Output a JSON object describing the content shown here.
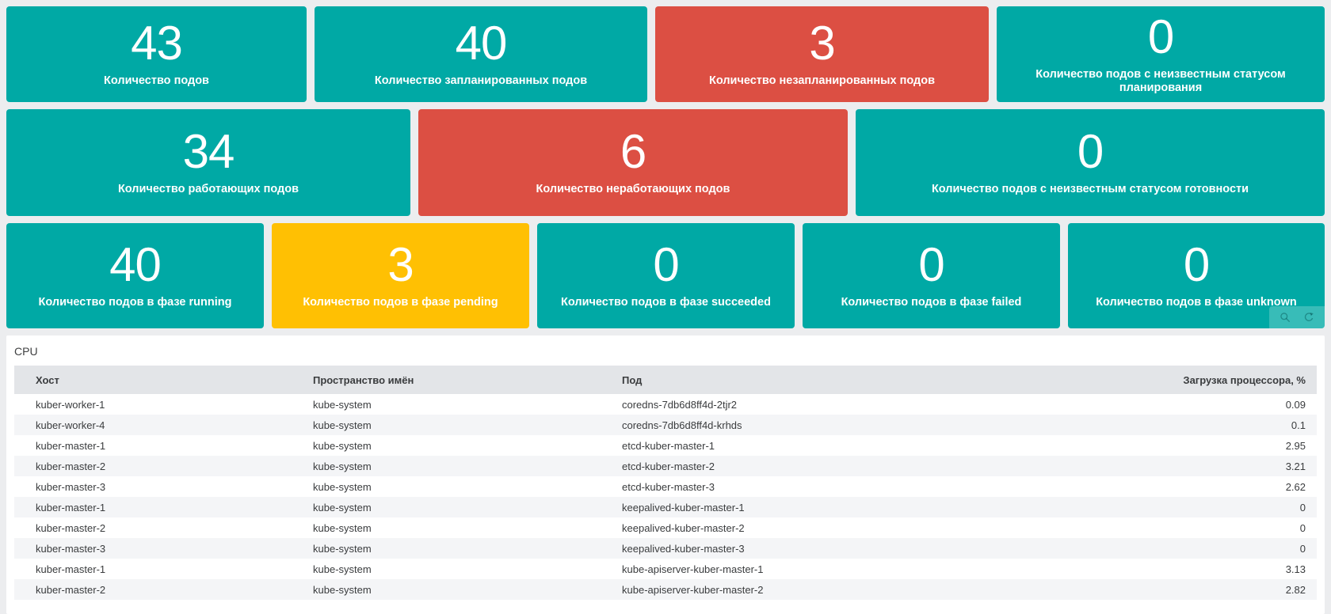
{
  "colors": {
    "teal": "#00a9a5",
    "red": "#dc4f43",
    "yellow": "#ffc003",
    "page_background": "#ecedef",
    "table_header_background": "#e3e5e8",
    "table_stripe_background": "#f4f5f7",
    "tile_text": "#ffffff",
    "table_text": "#3a3c3e"
  },
  "stat_rows": [
    {
      "tiles": [
        {
          "value": "43",
          "label": "Количество подов",
          "color": "teal"
        },
        {
          "value": "40",
          "label": "Количество запланированных подов",
          "color": "teal"
        },
        {
          "value": "3",
          "label": "Количество незапланированных подов",
          "color": "red"
        },
        {
          "value": "0",
          "label": "Количество подов с неизвестным статусом планирования",
          "color": "teal"
        }
      ]
    },
    {
      "tiles": [
        {
          "value": "34",
          "label": "Количество работающих подов",
          "color": "teal"
        },
        {
          "value": "6",
          "label": "Количество неработающих подов",
          "color": "red"
        },
        {
          "value": "0",
          "label": "Количество подов с неизвестным статусом готовности",
          "color": "teal"
        }
      ]
    },
    {
      "tiles": [
        {
          "value": "40",
          "label": "Количество подов в фазе running",
          "color": "teal"
        },
        {
          "value": "3",
          "label": "Количество подов в фазе pending",
          "color": "yellow"
        },
        {
          "value": "0",
          "label": "Количество подов в фазе succeeded",
          "color": "teal"
        },
        {
          "value": "0",
          "label": "Количество подов в фазе failed",
          "color": "teal"
        },
        {
          "value": "0",
          "label": "Количество подов в фазе unknown",
          "color": "teal"
        }
      ]
    }
  ],
  "widget_controls": {
    "icons": [
      {
        "name": "magnifier-icon"
      },
      {
        "name": "refresh-icon"
      }
    ]
  },
  "cpu_table": {
    "title": "CPU",
    "columns": [
      "Хост",
      "Пространство имён",
      "Под",
      "Загрузка процессора, %"
    ],
    "rows": [
      {
        "host": "kuber-worker-1",
        "namespace": "kube-system",
        "pod": "coredns-7db6d8ff4d-2tjr2",
        "cpu": "0.09"
      },
      {
        "host": "kuber-worker-4",
        "namespace": "kube-system",
        "pod": "coredns-7db6d8ff4d-krhds",
        "cpu": "0.1"
      },
      {
        "host": "kuber-master-1",
        "namespace": "kube-system",
        "pod": "etcd-kuber-master-1",
        "cpu": "2.95"
      },
      {
        "host": "kuber-master-2",
        "namespace": "kube-system",
        "pod": "etcd-kuber-master-2",
        "cpu": "3.21"
      },
      {
        "host": "kuber-master-3",
        "namespace": "kube-system",
        "pod": "etcd-kuber-master-3",
        "cpu": "2.62"
      },
      {
        "host": "kuber-master-1",
        "namespace": "kube-system",
        "pod": "keepalived-kuber-master-1",
        "cpu": "0"
      },
      {
        "host": "kuber-master-2",
        "namespace": "kube-system",
        "pod": "keepalived-kuber-master-2",
        "cpu": "0"
      },
      {
        "host": "kuber-master-3",
        "namespace": "kube-system",
        "pod": "keepalived-kuber-master-3",
        "cpu": "0"
      },
      {
        "host": "kuber-master-1",
        "namespace": "kube-system",
        "pod": "kube-apiserver-kuber-master-1",
        "cpu": "3.13"
      },
      {
        "host": "kuber-master-2",
        "namespace": "kube-system",
        "pod": "kube-apiserver-kuber-master-2",
        "cpu": "2.82"
      }
    ]
  }
}
